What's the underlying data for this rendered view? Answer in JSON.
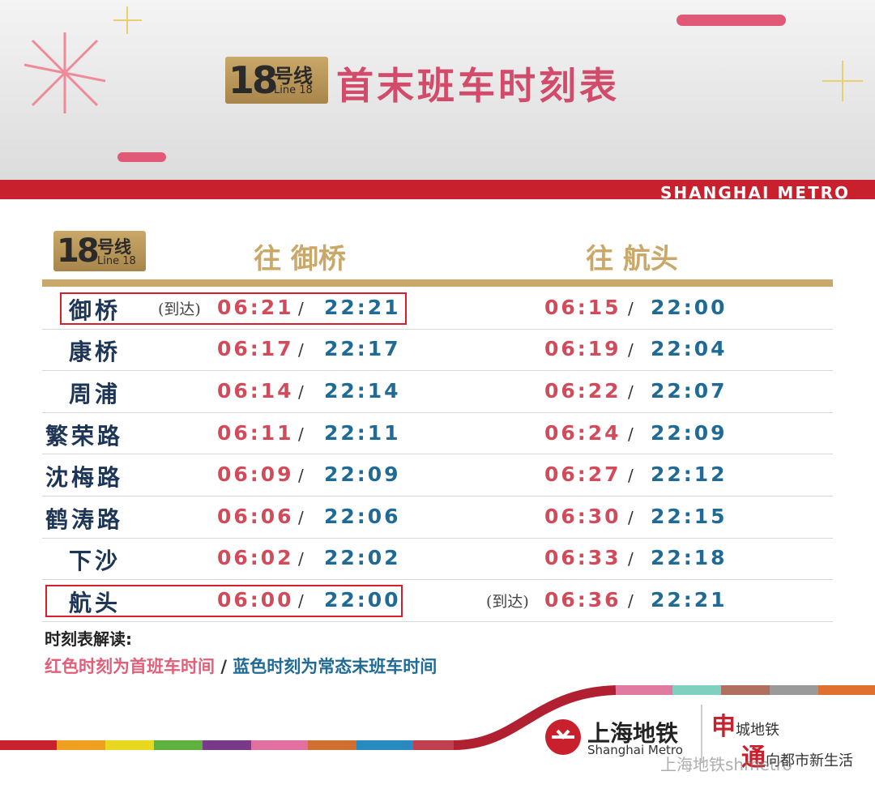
{
  "header": {
    "badge": {
      "number": "18",
      "label": "号线",
      "english": "Line 18"
    },
    "title": "首末班车时刻表",
    "brand": "SHANGHAI METRO"
  },
  "table": {
    "badge": {
      "number": "18",
      "label": "号线",
      "english": "Line 18"
    },
    "columns": [
      "往 御桥",
      "往 航头"
    ],
    "separator": "/",
    "rows": [
      {
        "station": "御桥",
        "to_yuqiao": {
          "note": "(到达)",
          "first": "06:21",
          "last": "22:21"
        },
        "to_hangtou": {
          "first": "06:15",
          "last": "22:00"
        }
      },
      {
        "station": "康桥",
        "to_yuqiao": {
          "first": "06:17",
          "last": "22:17"
        },
        "to_hangtou": {
          "first": "06:19",
          "last": "22:04"
        }
      },
      {
        "station": "周浦",
        "to_yuqiao": {
          "first": "06:14",
          "last": "22:14"
        },
        "to_hangtou": {
          "first": "06:22",
          "last": "22:07"
        }
      },
      {
        "station": "繁荣路",
        "to_yuqiao": {
          "first": "06:11",
          "last": "22:11"
        },
        "to_hangtou": {
          "first": "06:24",
          "last": "22:09"
        }
      },
      {
        "station": "沈梅路",
        "to_yuqiao": {
          "first": "06:09",
          "last": "22:09"
        },
        "to_hangtou": {
          "first": "06:27",
          "last": "22:12"
        }
      },
      {
        "station": "鹤涛路",
        "to_yuqiao": {
          "first": "06:06",
          "last": "22:06"
        },
        "to_hangtou": {
          "first": "06:30",
          "last": "22:15"
        }
      },
      {
        "station": "下沙",
        "to_yuqiao": {
          "first": "06:02",
          "last": "22:02"
        },
        "to_hangtou": {
          "first": "06:33",
          "last": "22:18"
        }
      },
      {
        "station": "航头",
        "to_yuqiao": {
          "first": "06:00",
          "last": "22:00"
        },
        "to_hangtou": {
          "note": "(到达)",
          "first": "06:36",
          "last": "22:21"
        }
      }
    ]
  },
  "legend": {
    "title": "时刻表解读:",
    "first_train": "红色时刻为首班车时间",
    "separator": "/",
    "last_train": "蓝色时刻为常态末班车时间"
  },
  "footer": {
    "logo_cn": "上海地铁",
    "logo_en": "Shanghai Metro",
    "slogan_1_big": "申",
    "slogan_1": "城地铁",
    "slogan_2_big": "通",
    "slogan_2": "向都市新生活",
    "watermark": "上海地铁shmetro"
  }
}
